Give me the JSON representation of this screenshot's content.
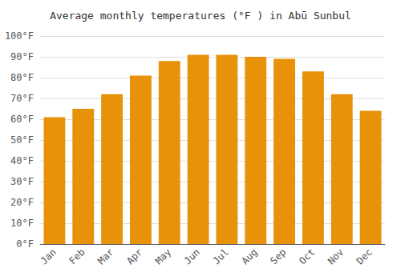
{
  "chart_data": {
    "type": "bar",
    "title": "Average monthly temperatures (°F ) in Abū Sunbul",
    "categories": [
      "Jan",
      "Feb",
      "Mar",
      "Apr",
      "May",
      "Jun",
      "Jul",
      "Aug",
      "Sep",
      "Oct",
      "Nov",
      "Dec"
    ],
    "values": [
      61,
      65,
      72,
      81,
      88,
      91,
      91,
      90,
      89,
      83,
      72,
      64
    ],
    "color": "#E8920A",
    "ylim": [
      0,
      100
    ],
    "yticks": [
      {
        "value": 0,
        "label": "0°F"
      },
      {
        "value": 10,
        "label": "10°F"
      },
      {
        "value": 20,
        "label": "20°F"
      },
      {
        "value": 30,
        "label": "30°F"
      },
      {
        "value": 40,
        "label": "40°F"
      },
      {
        "value": 50,
        "label": "50°F"
      },
      {
        "value": 60,
        "label": "60°F"
      },
      {
        "value": 70,
        "label": "70°F"
      },
      {
        "value": 80,
        "label": "80°F"
      },
      {
        "value": 90,
        "label": "90°F"
      },
      {
        "value": 100,
        "label": "100°F"
      }
    ],
    "grid": true
  }
}
